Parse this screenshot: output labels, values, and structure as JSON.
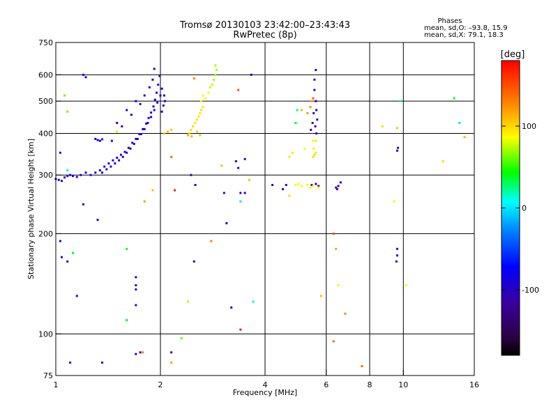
{
  "title": {
    "line1": "Tromsø 20130103 23:42:00–23:43:43",
    "line2": "RwPretec (8p)"
  },
  "phase_stats": {
    "heading": "Phases",
    "line_o": "mean, sd,O: –93.8, 15.9",
    "line_x": "mean, sd,X:  79.1, 18.3"
  },
  "colorbar": {
    "label": "[deg]",
    "range": [
      -180,
      180
    ],
    "ticks": [
      {
        "value": 100,
        "label": "100"
      },
      {
        "value": 0,
        "label": "0"
      },
      {
        "value": -100,
        "label": "-100"
      }
    ],
    "colors": [
      "#000000",
      "#2a0040",
      "#3a00a0",
      "#0000ff",
      "#0080ff",
      "#00ffff",
      "#00ff00",
      "#ffff00",
      "#ff8000",
      "#ff0000"
    ]
  },
  "chart_data": {
    "type": "scatter",
    "xlabel": "Frequency [MHz]",
    "ylabel": "Stationary phase Virtual Height [km]",
    "xscale": "log",
    "yscale": "log",
    "xlim": [
      1,
      16
    ],
    "ylim": [
      75,
      750
    ],
    "xticks": [
      {
        "value": 1,
        "label": "1"
      },
      {
        "value": 2,
        "label": "2"
      },
      {
        "value": 4,
        "label": "4"
      },
      {
        "value": 6,
        "label": "6"
      },
      {
        "value": 8,
        "label": "8"
      },
      {
        "value": 10,
        "label": "10"
      },
      {
        "value": 16,
        "label": "16"
      }
    ],
    "yticks": [
      {
        "value": 75,
        "label": "75"
      },
      {
        "value": 100,
        "label": "100"
      },
      {
        "value": 200,
        "label": "200"
      },
      {
        "value": 300,
        "label": "300"
      },
      {
        "value": 400,
        "label": "400"
      },
      {
        "value": 500,
        "label": "500"
      },
      {
        "value": 600,
        "label": "600"
      },
      {
        "value": 750,
        "label": "750"
      }
    ],
    "grid": true,
    "grid_x": [
      2,
      4,
      6,
      8,
      10
    ],
    "grid_y": [
      100,
      200,
      300,
      400,
      500,
      600
    ],
    "series": [
      {
        "points": [
          [
            1.0,
            292,
            -95
          ],
          [
            1.02,
            290,
            -95
          ],
          [
            1.04,
            288,
            -95
          ],
          [
            1.06,
            295,
            -95
          ],
          [
            1.08,
            298,
            -96
          ],
          [
            1.1,
            300,
            -95
          ],
          [
            1.12,
            298,
            -95
          ],
          [
            1.15,
            296,
            -95
          ],
          [
            1.18,
            300,
            -96
          ],
          [
            1.22,
            305,
            -95
          ],
          [
            1.26,
            300,
            -95
          ],
          [
            1.3,
            305,
            -95
          ],
          [
            1.34,
            310,
            -95
          ],
          [
            1.38,
            318,
            -95
          ],
          [
            1.42,
            325,
            -95
          ],
          [
            1.46,
            332,
            -95
          ],
          [
            1.5,
            338,
            -95
          ],
          [
            1.54,
            345,
            -95
          ],
          [
            1.58,
            352,
            -95
          ],
          [
            1.62,
            362,
            -95
          ],
          [
            1.66,
            375,
            -95
          ],
          [
            1.7,
            385,
            -95
          ],
          [
            1.74,
            398,
            -95
          ],
          [
            1.78,
            412,
            -95
          ],
          [
            1.82,
            428,
            -95
          ],
          [
            1.85,
            445,
            -95
          ],
          [
            1.88,
            462,
            -95
          ],
          [
            1.91,
            482,
            -95
          ],
          [
            1.93,
            505,
            -95
          ],
          [
            1.95,
            530,
            -95
          ],
          [
            1.97,
            560,
            -95
          ],
          [
            1.99,
            595,
            -95
          ],
          [
            1.92,
            625,
            -95
          ],
          [
            1.36,
            305,
            -95
          ],
          [
            1.4,
            312,
            -95
          ],
          [
            1.44,
            318,
            -95
          ],
          [
            1.48,
            325,
            -95
          ],
          [
            1.52,
            332,
            -95
          ],
          [
            1.56,
            340,
            -95
          ],
          [
            1.6,
            350,
            -95
          ],
          [
            1.64,
            360,
            -95
          ],
          [
            1.68,
            372,
            -95
          ],
          [
            1.72,
            385,
            -95
          ],
          [
            1.76,
            398,
            -95
          ],
          [
            1.8,
            412,
            -95
          ],
          [
            1.84,
            430,
            -95
          ],
          [
            1.88,
            448,
            -95
          ],
          [
            1.92,
            470,
            -95
          ],
          [
            1.96,
            495,
            -95
          ],
          [
            2.0,
            520,
            -95
          ],
          [
            2.02,
            545,
            -95
          ],
          [
            1.45,
            380,
            -95
          ],
          [
            1.55,
            420,
            -95
          ],
          [
            1.65,
            455,
            -95
          ],
          [
            1.75,
            490,
            -95
          ],
          [
            1.8,
            520,
            -95
          ],
          [
            1.86,
            550,
            -95
          ],
          [
            1.9,
            580,
            -95
          ],
          [
            1.7,
            500,
            -95
          ],
          [
            1.6,
            470,
            -95
          ],
          [
            1.5,
            430,
            -95
          ],
          [
            1.3,
            385,
            -100
          ],
          [
            1.32,
            382,
            -100
          ],
          [
            1.34,
            380,
            -100
          ],
          [
            1.36,
            384,
            -100
          ],
          [
            2.02,
            465,
            -95
          ],
          [
            2.04,
            485,
            -95
          ],
          [
            2.06,
            500,
            -95
          ],
          [
            2.05,
            520,
            -95
          ],
          [
            5.55,
            540,
            -100
          ],
          [
            5.6,
            500,
            -100
          ],
          [
            5.62,
            470,
            -100
          ],
          [
            5.65,
            440,
            -100
          ],
          [
            5.58,
            420,
            -100
          ],
          [
            5.62,
            400,
            -100
          ],
          [
            5.55,
            580,
            -100
          ],
          [
            5.6,
            620,
            -100
          ],
          [
            5.52,
            460,
            -110
          ],
          [
            5.48,
            430,
            -120
          ],
          [
            5.42,
            410,
            -120
          ],
          [
            5.45,
            280,
            -110
          ],
          [
            5.6,
            282,
            -110
          ],
          [
            5.7,
            278,
            -110
          ],
          [
            6.4,
            275,
            -120
          ],
          [
            6.5,
            278,
            -120
          ],
          [
            6.6,
            285,
            -120
          ],
          [
            6.45,
            272,
            -120
          ],
          [
            4.6,
            280,
            -110
          ],
          [
            4.2,
            280,
            -110
          ],
          [
            4.5,
            272,
            -110
          ],
          [
            1.03,
            190,
            -100
          ],
          [
            1.04,
            170,
            -100
          ],
          [
            1.08,
            165,
            -100
          ],
          [
            1.03,
            350,
            -100
          ],
          [
            1.2,
            245,
            -100
          ],
          [
            1.32,
            220,
            -100
          ],
          [
            1.2,
            600,
            -100
          ],
          [
            1.22,
            590,
            -100
          ],
          [
            1.7,
            148,
            -100
          ],
          [
            1.7,
            140,
            -100
          ],
          [
            1.7,
            136,
            -100
          ],
          [
            1.7,
            122,
            -100
          ],
          [
            2.45,
            300,
            -100
          ],
          [
            2.52,
            280,
            -100
          ],
          [
            2.5,
            165,
            -100
          ],
          [
            3.1,
            215,
            -100
          ],
          [
            3.05,
            265,
            -100
          ],
          [
            3.3,
            330,
            -100
          ],
          [
            3.35,
            315,
            -100
          ],
          [
            3.4,
            265,
            -100
          ],
          [
            3.5,
            335,
            -100
          ],
          [
            3.5,
            265,
            -100
          ],
          [
            3.2,
            120,
            -100
          ],
          [
            3.65,
            600,
            -100
          ],
          [
            9.6,
            180,
            -110
          ],
          [
            9.6,
            172,
            -110
          ],
          [
            9.55,
            165,
            -110
          ],
          [
            9.6,
            355,
            -110
          ],
          [
            9.65,
            362,
            -110
          ],
          [
            1.15,
            130,
            -100
          ],
          [
            1.1,
            82,
            -100
          ],
          [
            1.36,
            82,
            -100
          ],
          [
            2.15,
            88,
            -100
          ],
          [
            1.75,
            88,
            -100
          ],
          [
            1.7,
            87,
            -100
          ]
        ]
      },
      {
        "points": [
          [
            2.42,
            400,
            100
          ],
          [
            2.45,
            410,
            100
          ],
          [
            2.48,
            420,
            100
          ],
          [
            2.52,
            430,
            95
          ],
          [
            2.55,
            440,
            95
          ],
          [
            2.58,
            450,
            95
          ],
          [
            2.6,
            460,
            95
          ],
          [
            2.62,
            470,
            95
          ],
          [
            2.65,
            480,
            95
          ],
          [
            2.55,
            405,
            105
          ],
          [
            2.6,
            395,
            110
          ],
          [
            2.4,
            395,
            115
          ],
          [
            2.46,
            392,
            115
          ],
          [
            2.62,
            500,
            90
          ],
          [
            2.65,
            520,
            90
          ],
          [
            2.7,
            510,
            90
          ],
          [
            2.75,
            530,
            80
          ],
          [
            2.78,
            550,
            75
          ],
          [
            2.82,
            560,
            75
          ],
          [
            2.85,
            580,
            70
          ],
          [
            2.88,
            600,
            70
          ],
          [
            2.9,
            620,
            70
          ],
          [
            2.88,
            640,
            70
          ],
          [
            2.1,
            405,
            110
          ],
          [
            2.15,
            410,
            110
          ],
          [
            2.05,
            400,
            110
          ],
          [
            5.5,
            340,
            100
          ],
          [
            5.55,
            345,
            100
          ],
          [
            5.52,
            360,
            90
          ],
          [
            5.6,
            350,
            95
          ],
          [
            5.5,
            380,
            90
          ],
          [
            5.6,
            380,
            95
          ],
          [
            4.8,
            350,
            95
          ],
          [
            4.7,
            340,
            95
          ],
          [
            5.2,
            360,
            90
          ],
          [
            4.9,
            280,
            90
          ],
          [
            5.0,
            282,
            85
          ],
          [
            5.1,
            278,
            85
          ],
          [
            5.3,
            280,
            85
          ],
          [
            5.4,
            275,
            80
          ],
          [
            5.5,
            278,
            85
          ],
          [
            5.7,
            275,
            85
          ],
          [
            5.1,
            470,
            110
          ],
          [
            5.3,
            460,
            120
          ],
          [
            5.4,
            480,
            125
          ],
          [
            5.45,
            500,
            120
          ],
          [
            5.5,
            510,
            140
          ],
          [
            4.9,
            430,
            40
          ],
          [
            4.95,
            470,
            20
          ],
          [
            1.08,
            465,
            60
          ],
          [
            1.06,
            520,
            60
          ],
          [
            1.5,
            405,
            100
          ],
          [
            1.8,
            250,
            120
          ],
          [
            2.15,
            340,
            140
          ],
          [
            3.0,
            320,
            110
          ],
          [
            3.6,
            290,
            110
          ],
          [
            4.7,
            260,
            100
          ],
          [
            5.3,
            280,
            90
          ],
          [
            6.5,
            140,
            90
          ],
          [
            6.4,
            180,
            120
          ],
          [
            7.6,
            80,
            140
          ],
          [
            9.4,
            250,
            90
          ],
          [
            9.6,
            415,
            110
          ],
          [
            8.7,
            420,
            100
          ],
          [
            13.0,
            330,
            100
          ],
          [
            14.0,
            510,
            40
          ],
          [
            14.5,
            430,
            0
          ],
          [
            15.0,
            390,
            110
          ],
          [
            9.8,
            500,
            20
          ],
          [
            10.2,
            140,
            90
          ],
          [
            5.8,
            130,
            110
          ],
          [
            6.8,
            115,
            130
          ],
          [
            6.3,
            200,
            150
          ],
          [
            6.3,
            95,
            140
          ],
          [
            2.3,
            97,
            60
          ],
          [
            3.4,
            103,
            170
          ],
          [
            3.7,
            125,
            20
          ],
          [
            2.4,
            125,
            100
          ],
          [
            2.5,
            585,
            130
          ],
          [
            3.35,
            540,
            150
          ],
          [
            1.6,
            180,
            40
          ],
          [
            1.6,
            110,
            40
          ],
          [
            1.9,
            270,
            110
          ],
          [
            2.2,
            270,
            170
          ],
          [
            2.8,
            190,
            130
          ],
          [
            3.4,
            250,
            20
          ],
          [
            1.78,
            88,
            130
          ],
          [
            2.15,
            82,
            120
          ],
          [
            1.12,
            175,
            40
          ],
          [
            1.08,
            310,
            20
          ]
        ]
      }
    ]
  }
}
